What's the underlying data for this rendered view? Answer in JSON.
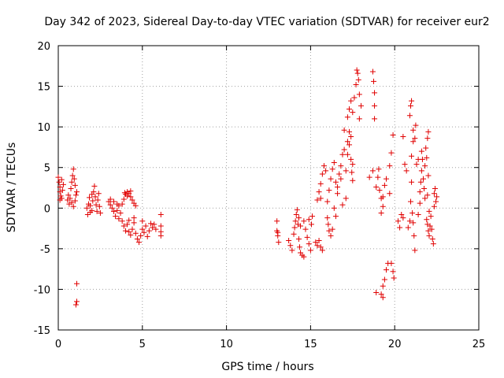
{
  "chart_data": {
    "type": "scatter",
    "title": "Day 342 of 2023, Sidereal Day-to-day VTEC variation (SDTVAR) for receiver eur2",
    "xlabel": "GPS time / hours",
    "ylabel": "SDTVAR / TECUs",
    "xlim": [
      0,
      25
    ],
    "ylim": [
      -15,
      20
    ],
    "xticks": [
      "0",
      "5",
      "10",
      "15",
      "20",
      "25"
    ],
    "yticks": [
      "-15",
      "-10",
      "-5",
      "0",
      "5",
      "10",
      "15",
      "20"
    ],
    "grid": true,
    "marker": "plus",
    "color": "#e00000",
    "series": [
      {
        "name": "eur2",
        "points": [
          [
            0.0,
            3.8
          ],
          [
            0.05,
            3.2
          ],
          [
            0.1,
            2.6
          ],
          [
            0.1,
            2.0
          ],
          [
            0.15,
            1.5
          ],
          [
            0.2,
            1.2
          ],
          [
            0.25,
            2.2
          ],
          [
            0.3,
            2.9
          ],
          [
            0.1,
            1.0
          ],
          [
            0.2,
            3.5
          ],
          [
            0.55,
            1.0
          ],
          [
            0.6,
            1.6
          ],
          [
            0.65,
            0.5
          ],
          [
            0.7,
            1.2
          ],
          [
            0.75,
            2.4
          ],
          [
            0.8,
            3.2
          ],
          [
            0.85,
            4.0
          ],
          [
            0.9,
            4.8
          ],
          [
            0.95,
            3.6
          ],
          [
            1.0,
            0.9
          ],
          [
            1.05,
            1.6
          ],
          [
            1.1,
            2.0
          ],
          [
            0.9,
            0.2
          ],
          [
            0.8,
            0.7
          ],
          [
            1.0,
            2.8
          ],
          [
            1.1,
            -9.3
          ],
          [
            1.1,
            -11.5
          ],
          [
            1.05,
            -11.9
          ],
          [
            1.7,
            0.0
          ],
          [
            1.75,
            -0.8
          ],
          [
            1.8,
            0.5
          ],
          [
            1.85,
            1.3
          ],
          [
            1.9,
            0.3
          ],
          [
            2.0,
            -0.3
          ],
          [
            2.05,
            0.9
          ],
          [
            2.1,
            2.0
          ],
          [
            2.15,
            2.7
          ],
          [
            2.2,
            1.4
          ],
          [
            2.25,
            0.4
          ],
          [
            2.3,
            -0.4
          ],
          [
            2.35,
            1.0
          ],
          [
            2.4,
            1.8
          ],
          [
            2.45,
            0.2
          ],
          [
            2.5,
            -0.6
          ],
          [
            2.0,
            1.7
          ],
          [
            1.9,
            -0.5
          ],
          [
            3.0,
            0.8
          ],
          [
            3.1,
            0.4
          ],
          [
            3.2,
            0.0
          ],
          [
            3.3,
            -0.4
          ],
          [
            3.4,
            -1.0
          ],
          [
            3.5,
            -0.3
          ],
          [
            3.6,
            0.3
          ],
          [
            3.7,
            -0.6
          ],
          [
            3.1,
            1.1
          ],
          [
            3.3,
            0.8
          ],
          [
            3.5,
            0.5
          ],
          [
            3.6,
            -1.3
          ],
          [
            3.8,
            0.5
          ],
          [
            3.9,
            1.1
          ],
          [
            4.0,
            1.7
          ],
          [
            4.1,
            2.0
          ],
          [
            4.2,
            1.8
          ],
          [
            4.3,
            1.4
          ],
          [
            4.4,
            1.0
          ],
          [
            4.5,
            0.6
          ],
          [
            4.6,
            0.3
          ],
          [
            4.1,
            1.5
          ],
          [
            4.3,
            2.1
          ],
          [
            3.95,
            1.9
          ],
          [
            3.8,
            -1.6
          ],
          [
            3.9,
            -2.2
          ],
          [
            4.0,
            -2.8
          ],
          [
            4.1,
            -2.0
          ],
          [
            4.2,
            -2.9
          ],
          [
            4.3,
            -3.3
          ],
          [
            4.4,
            -2.6
          ],
          [
            4.5,
            -1.8
          ],
          [
            4.6,
            -3.1
          ],
          [
            4.7,
            -3.8
          ],
          [
            4.8,
            -4.2
          ],
          [
            4.9,
            -3.4
          ],
          [
            5.0,
            -2.6
          ],
          [
            5.1,
            -3.0
          ],
          [
            5.2,
            -2.2
          ],
          [
            5.3,
            -3.5
          ],
          [
            5.4,
            -2.8
          ],
          [
            5.5,
            -1.9
          ],
          [
            5.6,
            -2.4
          ],
          [
            5.7,
            -2.0
          ],
          [
            5.8,
            -2.6
          ],
          [
            4.5,
            -1.2
          ],
          [
            4.2,
            -1.5
          ],
          [
            5.0,
            -1.6
          ],
          [
            6.1,
            -0.8
          ],
          [
            6.1,
            -2.2
          ],
          [
            6.1,
            -2.9
          ],
          [
            6.1,
            -3.4
          ],
          [
            13.0,
            -1.6
          ],
          [
            13.0,
            -2.8
          ],
          [
            13.05,
            -3.4
          ],
          [
            13.1,
            -4.2
          ],
          [
            13.05,
            -3.0
          ],
          [
            13.7,
            -4.0
          ],
          [
            13.8,
            -4.6
          ],
          [
            13.9,
            -5.2
          ],
          [
            14.0,
            -3.2
          ],
          [
            14.05,
            -2.4
          ],
          [
            14.1,
            -1.6
          ],
          [
            14.15,
            -0.8
          ],
          [
            14.2,
            -0.2
          ],
          [
            14.25,
            -2.0
          ],
          [
            14.3,
            -3.8
          ],
          [
            14.35,
            -4.8
          ],
          [
            14.4,
            -5.5
          ],
          [
            14.5,
            -5.8
          ],
          [
            14.6,
            -6.0
          ],
          [
            14.3,
            -1.2
          ],
          [
            14.4,
            -2.2
          ],
          [
            14.6,
            -1.6
          ],
          [
            14.7,
            -2.6
          ],
          [
            14.8,
            -3.6
          ],
          [
            14.9,
            -4.4
          ],
          [
            15.0,
            -5.2
          ],
          [
            15.05,
            -2.0
          ],
          [
            15.1,
            -1.0
          ],
          [
            14.9,
            -1.4
          ],
          [
            15.3,
            -4.2
          ],
          [
            15.4,
            -4.6
          ],
          [
            15.5,
            -4.0
          ],
          [
            15.6,
            -4.8
          ],
          [
            15.7,
            -5.2
          ],
          [
            15.4,
            1.0
          ],
          [
            15.5,
            2.0
          ],
          [
            15.6,
            3.0
          ],
          [
            15.7,
            4.2
          ],
          [
            15.8,
            5.2
          ],
          [
            15.9,
            4.6
          ],
          [
            15.6,
            1.2
          ],
          [
            16.0,
            -1.2
          ],
          [
            16.05,
            -2.0
          ],
          [
            16.1,
            -2.8
          ],
          [
            16.2,
            -3.4
          ],
          [
            16.3,
            -2.6
          ],
          [
            16.0,
            0.8
          ],
          [
            16.1,
            2.2
          ],
          [
            16.2,
            3.6
          ],
          [
            16.3,
            4.8
          ],
          [
            16.4,
            5.6
          ],
          [
            16.5,
            3.2
          ],
          [
            16.6,
            1.8
          ],
          [
            16.7,
            4.2
          ],
          [
            16.8,
            5.2
          ],
          [
            16.9,
            6.6
          ],
          [
            17.0,
            7.2
          ],
          [
            17.1,
            4.6
          ],
          [
            17.2,
            8.2
          ],
          [
            17.3,
            9.4
          ],
          [
            17.4,
            6.0
          ],
          [
            17.45,
            4.4
          ],
          [
            17.5,
            5.4
          ],
          [
            16.4,
            0.0
          ],
          [
            16.5,
            -1.0
          ],
          [
            16.6,
            2.6
          ],
          [
            16.8,
            3.6
          ],
          [
            17.0,
            9.6
          ],
          [
            17.2,
            6.6
          ],
          [
            16.9,
            0.4
          ],
          [
            17.1,
            1.2
          ],
          [
            17.3,
            7.8
          ],
          [
            17.4,
            8.8
          ],
          [
            17.5,
            3.4
          ],
          [
            17.2,
            11.2
          ],
          [
            17.3,
            12.2
          ],
          [
            17.4,
            13.2
          ],
          [
            17.5,
            11.8
          ],
          [
            17.6,
            13.6
          ],
          [
            17.7,
            15.2
          ],
          [
            17.8,
            16.6
          ],
          [
            17.9,
            14.0
          ],
          [
            18.0,
            12.6
          ],
          [
            17.75,
            17.0
          ],
          [
            17.85,
            15.8
          ],
          [
            17.9,
            11.0
          ],
          [
            18.7,
            16.8
          ],
          [
            18.75,
            15.6
          ],
          [
            18.8,
            14.2
          ],
          [
            18.8,
            12.6
          ],
          [
            18.8,
            11.0
          ],
          [
            18.5,
            3.8
          ],
          [
            18.7,
            4.6
          ],
          [
            18.9,
            2.6
          ],
          [
            19.0,
            3.8
          ],
          [
            19.1,
            2.2
          ],
          [
            19.2,
            1.2
          ],
          [
            19.3,
            0.2
          ],
          [
            19.2,
            -0.6
          ],
          [
            19.4,
            2.8
          ],
          [
            19.5,
            3.6
          ],
          [
            19.7,
            1.8
          ],
          [
            19.05,
            4.8
          ],
          [
            19.3,
            1.4
          ],
          [
            18.9,
            -10.4
          ],
          [
            19.2,
            -10.6
          ],
          [
            19.3,
            -9.6
          ],
          [
            19.4,
            -8.8
          ],
          [
            19.5,
            -7.6
          ],
          [
            19.6,
            -6.8
          ],
          [
            19.3,
            -11.0
          ],
          [
            19.7,
            5.2
          ],
          [
            19.8,
            6.8
          ],
          [
            19.9,
            9.0
          ],
          [
            19.8,
            -6.8
          ],
          [
            19.9,
            -7.8
          ],
          [
            19.95,
            -8.6
          ],
          [
            20.2,
            -1.6
          ],
          [
            20.3,
            -2.4
          ],
          [
            20.4,
            -0.8
          ],
          [
            20.5,
            -1.2
          ],
          [
            20.6,
            5.4
          ],
          [
            20.7,
            4.6
          ],
          [
            20.5,
            8.8
          ],
          [
            20.8,
            -2.4
          ],
          [
            20.9,
            -1.6
          ],
          [
            20.95,
            0.8
          ],
          [
            21.0,
            3.2
          ],
          [
            21.05,
            -0.6
          ],
          [
            21.1,
            -1.8
          ],
          [
            21.15,
            -3.4
          ],
          [
            21.2,
            -5.2
          ],
          [
            21.0,
            6.4
          ],
          [
            21.1,
            8.2
          ],
          [
            20.9,
            11.4
          ],
          [
            20.95,
            12.6
          ],
          [
            21.0,
            13.2
          ],
          [
            21.1,
            9.6
          ],
          [
            21.2,
            8.6
          ],
          [
            21.25,
            10.2
          ],
          [
            21.4,
            -0.8
          ],
          [
            21.5,
            0.6
          ],
          [
            21.5,
            2.0
          ],
          [
            21.55,
            3.2
          ],
          [
            21.6,
            4.6
          ],
          [
            21.65,
            6.0
          ],
          [
            21.7,
            3.6
          ],
          [
            21.75,
            2.4
          ],
          [
            21.8,
            5.2
          ],
          [
            21.85,
            7.4
          ],
          [
            21.9,
            6.2
          ],
          [
            21.95,
            8.6
          ],
          [
            22.0,
            9.4
          ],
          [
            22.0,
            4.0
          ],
          [
            21.4,
            6.0
          ],
          [
            21.3,
            5.4
          ],
          [
            21.6,
            7.0
          ],
          [
            21.8,
            1.2
          ],
          [
            21.9,
            -1.4
          ],
          [
            21.95,
            -2.0
          ],
          [
            22.0,
            -2.8
          ],
          [
            22.05,
            -3.4
          ],
          [
            22.1,
            -2.2
          ],
          [
            22.15,
            -1.0
          ],
          [
            22.2,
            -2.6
          ],
          [
            22.25,
            -3.8
          ],
          [
            22.3,
            -4.4
          ],
          [
            22.05,
            -0.4
          ],
          [
            21.95,
            1.6
          ],
          [
            22.35,
            1.8
          ],
          [
            22.4,
            2.4
          ],
          [
            22.45,
            0.8
          ],
          [
            22.5,
            1.4
          ],
          [
            22.35,
            0.2
          ]
        ]
      }
    ]
  }
}
